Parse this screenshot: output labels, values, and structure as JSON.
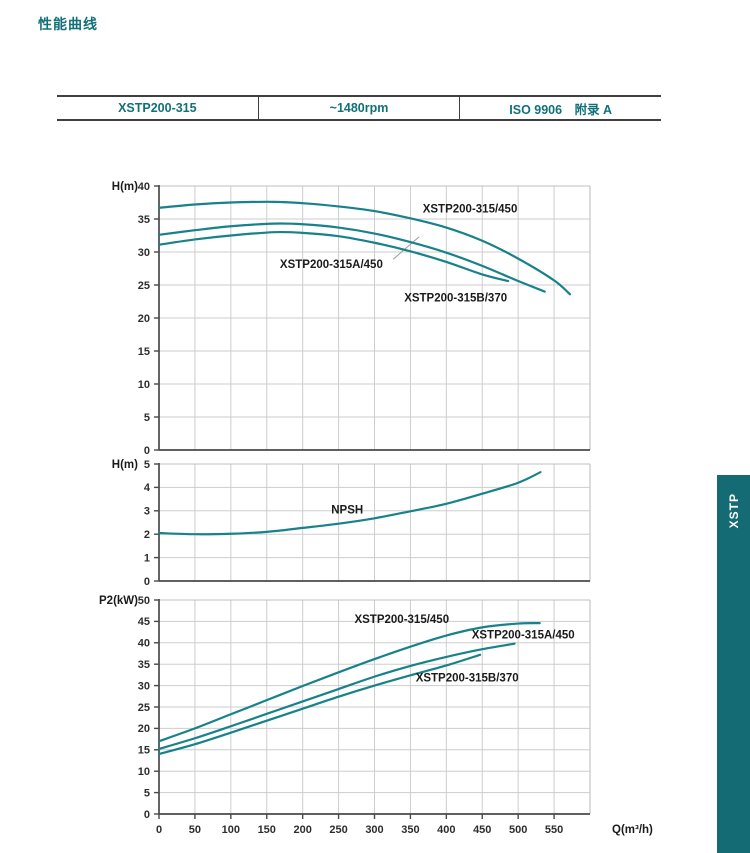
{
  "page": {
    "title": "性能曲线"
  },
  "header_table": {
    "cells": [
      "XSTP200-315",
      "~1480rpm",
      "ISO 9906　附录 A"
    ]
  },
  "side_tab": {
    "label": "XSTP"
  },
  "colors": {
    "teal_text": "#117179",
    "curve": "#17828a",
    "grid": "#cdcdcd",
    "border_light": "#bfbfbf",
    "axis_dark": "#4a4a4a",
    "tick_text": "#2e2e2e",
    "label_text": "#1b1b1b",
    "leader": "#9a9a9a",
    "tab_bg": "#156b74"
  },
  "chart_data": [
    {
      "id": "head-curve-chart",
      "type": "line",
      "ylabel": "H(m)",
      "xlabel": "",
      "xlim": [
        0,
        600
      ],
      "ylim": [
        0,
        40
      ],
      "yticks": [
        0,
        5,
        10,
        15,
        20,
        25,
        30,
        35,
        40
      ],
      "xticks": [
        0,
        50,
        100,
        150,
        200,
        250,
        300,
        350,
        400,
        450,
        500,
        550
      ],
      "grid": true,
      "series": [
        {
          "name": "XSTP200-315/450",
          "points": [
            [
              0,
              36.7
            ],
            [
              50,
              37.2
            ],
            [
              100,
              37.5
            ],
            [
              160,
              37.6
            ],
            [
              200,
              37.4
            ],
            [
              250,
              36.9
            ],
            [
              300,
              36.2
            ],
            [
              350,
              35.1
            ],
            [
              400,
              33.7
            ],
            [
              450,
              31.7
            ],
            [
              500,
              29.0
            ],
            [
              550,
              25.7
            ],
            [
              572,
              23.6
            ]
          ]
        },
        {
          "name": "XSTP200-315A/450",
          "points": [
            [
              0,
              32.6
            ],
            [
              50,
              33.3
            ],
            [
              100,
              33.9
            ],
            [
              160,
              34.3
            ],
            [
              200,
              34.2
            ],
            [
              250,
              33.7
            ],
            [
              300,
              32.8
            ],
            [
              350,
              31.5
            ],
            [
              400,
              29.9
            ],
            [
              450,
              27.9
            ],
            [
              500,
              25.6
            ],
            [
              537,
              24.0
            ]
          ]
        },
        {
          "name": "XSTP200-315B/370",
          "points": [
            [
              0,
              31.1
            ],
            [
              50,
              31.9
            ],
            [
              100,
              32.5
            ],
            [
              160,
              33.0
            ],
            [
              200,
              32.9
            ],
            [
              250,
              32.4
            ],
            [
              300,
              31.4
            ],
            [
              350,
              30.1
            ],
            [
              400,
              28.5
            ],
            [
              450,
              26.6
            ],
            [
              486,
              25.6
            ]
          ]
        }
      ],
      "labels": [
        {
          "text": "XSTP200-315/450",
          "x": 433,
          "y": 36.6
        },
        {
          "text": "XSTP200-315A/450",
          "x": 240,
          "y": 28.2
        },
        {
          "text": "XSTP200-315B/370",
          "x": 413,
          "y": 23.1
        }
      ],
      "leader": {
        "x1": 326,
        "y1": 28.9,
        "x2": 362,
        "y2": 32.3
      }
    },
    {
      "id": "npsh-chart",
      "type": "line",
      "ylabel": "H(m)",
      "xlabel": "",
      "xlim": [
        0,
        600
      ],
      "ylim": [
        0,
        5
      ],
      "yticks": [
        0,
        1,
        2,
        3,
        4,
        5
      ],
      "xticks": [
        0,
        50,
        100,
        150,
        200,
        250,
        300,
        350,
        400,
        450,
        500,
        550
      ],
      "grid": true,
      "series": [
        {
          "name": "NPSH",
          "points": [
            [
              0,
              2.05
            ],
            [
              50,
              2.0
            ],
            [
              100,
              2.02
            ],
            [
              150,
              2.1
            ],
            [
              200,
              2.27
            ],
            [
              250,
              2.45
            ],
            [
              300,
              2.68
            ],
            [
              350,
              2.98
            ],
            [
              400,
              3.3
            ],
            [
              450,
              3.73
            ],
            [
              500,
              4.2
            ],
            [
              531,
              4.65
            ]
          ]
        }
      ],
      "labels": [
        {
          "text": "NPSH",
          "x": 262,
          "y": 3.05
        }
      ]
    },
    {
      "id": "power-chart",
      "type": "line",
      "ylabel": "P2(kW)",
      "xlabel": "Q(m³/h)",
      "xlim": [
        0,
        600
      ],
      "ylim": [
        0,
        50
      ],
      "yticks": [
        0,
        5,
        10,
        15,
        20,
        25,
        30,
        35,
        40,
        45,
        50
      ],
      "xticks": [
        0,
        50,
        100,
        150,
        200,
        250,
        300,
        350,
        400,
        450,
        500,
        550
      ],
      "show_x_axis_labels": true,
      "grid": true,
      "series": [
        {
          "name": "XSTP200-315/450",
          "points": [
            [
              0,
              17.0
            ],
            [
              50,
              20.0
            ],
            [
              100,
              23.3
            ],
            [
              150,
              26.6
            ],
            [
              200,
              29.9
            ],
            [
              250,
              33.1
            ],
            [
              300,
              36.2
            ],
            [
              350,
              39.1
            ],
            [
              400,
              41.7
            ],
            [
              450,
              43.6
            ],
            [
              500,
              44.5
            ],
            [
              530,
              44.6
            ]
          ]
        },
        {
          "name": "XSTP200-315A/450",
          "points": [
            [
              0,
              15.2
            ],
            [
              50,
              17.7
            ],
            [
              100,
              20.5
            ],
            [
              150,
              23.4
            ],
            [
              200,
              26.3
            ],
            [
              250,
              29.2
            ],
            [
              300,
              32.1
            ],
            [
              350,
              34.6
            ],
            [
              400,
              36.7
            ],
            [
              450,
              38.5
            ],
            [
              495,
              39.8
            ]
          ]
        },
        {
          "name": "XSTP200-315B/370",
          "points": [
            [
              0,
              14.0
            ],
            [
              50,
              16.3
            ],
            [
              100,
              19.0
            ],
            [
              150,
              21.8
            ],
            [
              200,
              24.6
            ],
            [
              250,
              27.4
            ],
            [
              300,
              30.0
            ],
            [
              350,
              32.4
            ],
            [
              400,
              34.7
            ],
            [
              447,
              37.2
            ]
          ]
        }
      ],
      "labels": [
        {
          "text": "XSTP200-315/450",
          "x": 338,
          "y": 45.6
        },
        {
          "text": "XSTP200-315A/450",
          "x": 507,
          "y": 41.9
        },
        {
          "text": "XSTP200-315B/370",
          "x": 429,
          "y": 31.9
        }
      ]
    }
  ]
}
